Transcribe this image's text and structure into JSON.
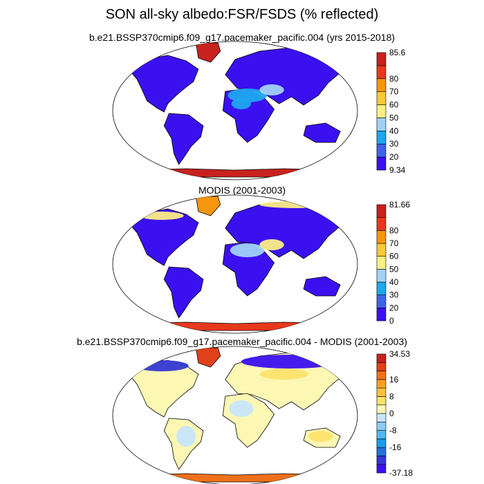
{
  "figure": {
    "title": "SON all-sky albedo:FSR/FSDS (% reflected)"
  },
  "palette": {
    "seq": [
      "#3b10f0",
      "#3f63e6",
      "#1fa6ee",
      "#a0d2f5",
      "#fcee84",
      "#fbc83a",
      "#f6960c",
      "#e8381c",
      "#c8221e"
    ],
    "diff": [
      "#3b10f0",
      "#3438d2",
      "#2770dc",
      "#1b9ce8",
      "#52b6f2",
      "#8ccdf6",
      "#c8e6fb",
      "#fdf7b4",
      "#fde26c",
      "#fcc13e",
      "#f8a020",
      "#f0701a",
      "#e0401a",
      "#c8221e"
    ]
  },
  "panels": [
    {
      "title": "b.e21.BSSP370cmip6.f09_g17.pacemaker_pacific.004 (yrs 2015-2018)",
      "colorbar": {
        "min_label": "9.34",
        "max_label": "85.6",
        "ticks": [
          "20",
          "30",
          "40",
          "50",
          "60",
          "70",
          "80"
        ]
      }
    },
    {
      "title": "MODIS (2001-2003)",
      "colorbar": {
        "min_label": "0",
        "max_label": "81.66",
        "ticks": [
          "20",
          "30",
          "40",
          "50",
          "60",
          "70",
          "80"
        ]
      }
    },
    {
      "title": "b.e21.BSSP370cmip6.f09_g17.pacemaker_pacific.004 - MODIS (2001-2003)",
      "colorbar": {
        "min_label": "-37.18",
        "max_label": "34.53",
        "ticks": [
          "-16",
          "-8",
          "0",
          "8",
          "16"
        ]
      }
    }
  ]
}
